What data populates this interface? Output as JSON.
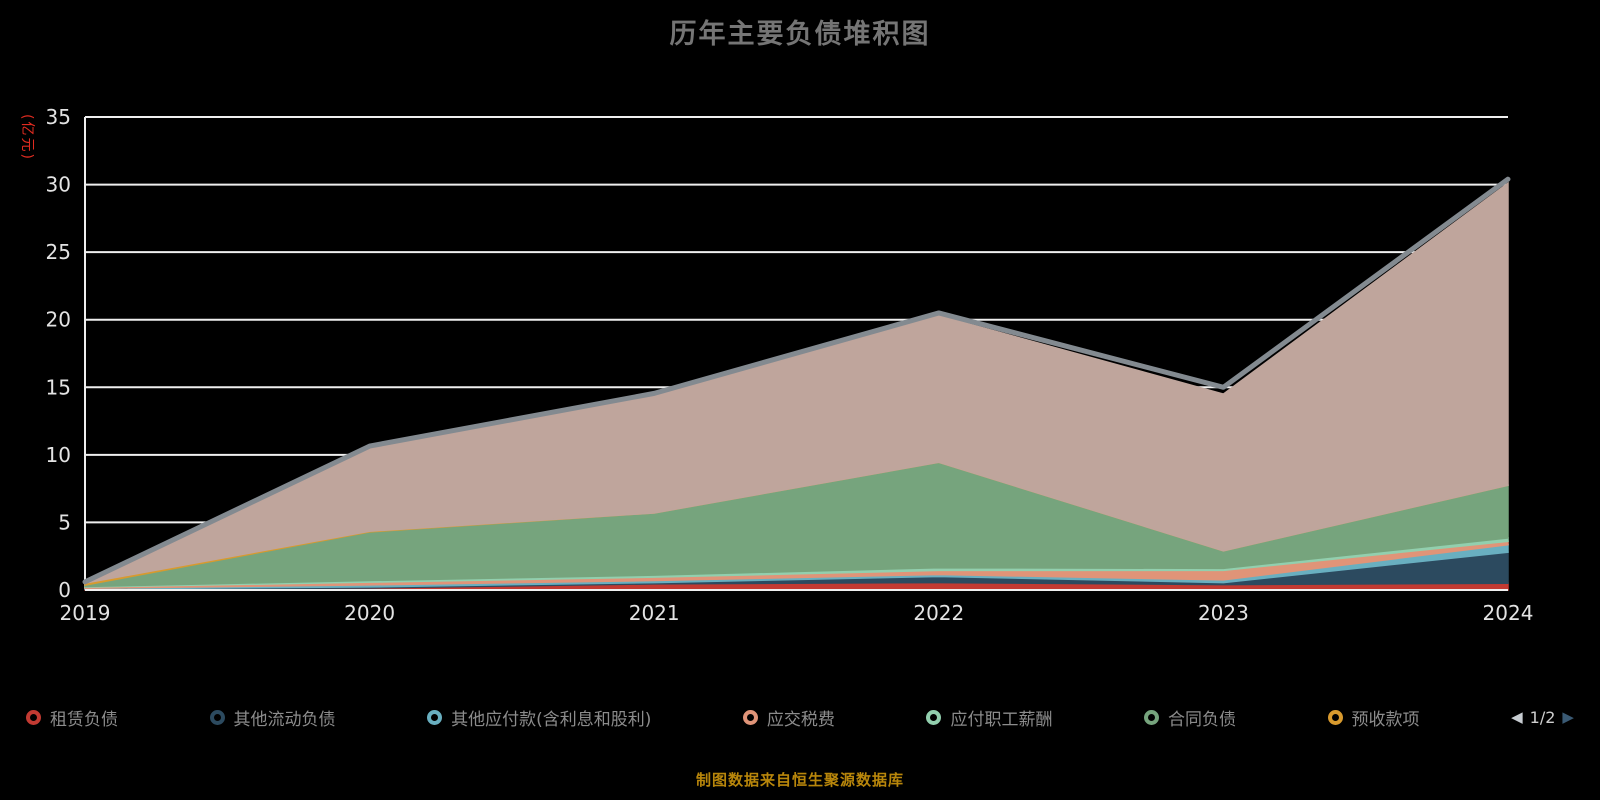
{
  "title": "历年主要负债堆积图",
  "y_axis_name": "(亿元)",
  "footer": "制图数据来自恒生聚源数据库",
  "pagination": {
    "current": "1/2",
    "prev_icon": "◀",
    "next_icon": "▶"
  },
  "chart_data": {
    "type": "area",
    "stacked": true,
    "title": "历年主要负债堆积图",
    "ylabel": "(亿元)",
    "x": [
      "2019",
      "2020",
      "2021",
      "2022",
      "2023",
      "2024"
    ],
    "ylim": [
      0,
      35
    ],
    "y_ticks": [
      0,
      5,
      10,
      15,
      20,
      25,
      30,
      35
    ],
    "grid": true,
    "legend_position": "bottom",
    "series": [
      {
        "name": "租赁负债",
        "color": "#c23a32",
        "in_legend": true,
        "values": [
          0.05,
          0.15,
          0.45,
          0.55,
          0.4,
          0.5
        ]
      },
      {
        "name": "其他流动负债",
        "color": "#2c4a5f",
        "in_legend": true,
        "values": [
          0.03,
          0.08,
          0.1,
          0.45,
          0.15,
          2.3
        ]
      },
      {
        "name": "其他应付款(含利息和股利)",
        "color": "#69afc0",
        "in_legend": true,
        "values": [
          0.05,
          0.15,
          0.15,
          0.15,
          0.2,
          0.55
        ]
      },
      {
        "name": "应交税费",
        "color": "#e09478",
        "in_legend": true,
        "values": [
          0.08,
          0.2,
          0.25,
          0.3,
          0.7,
          0.25
        ]
      },
      {
        "name": "应付职工薪酬",
        "color": "#92cfae",
        "in_legend": true,
        "values": [
          0.05,
          0.12,
          0.15,
          0.2,
          0.15,
          0.25
        ]
      },
      {
        "name": "合同负债",
        "color": "#76a47d",
        "in_legend": true,
        "values": [
          0.1,
          3.6,
          4.6,
          7.8,
          1.3,
          3.9
        ]
      },
      {
        "name": "预收款项",
        "color": "#d89a2e",
        "in_legend": true,
        "values": [
          0.15,
          0.05,
          0.0,
          0.0,
          0.0,
          0.0
        ]
      },
      {
        "name": "",
        "color": "#bfa59c",
        "in_legend": false,
        "values": [
          0.05,
          6.15,
          8.7,
          10.85,
          11.6,
          22.35
        ]
      }
    ],
    "total_line": {
      "color": "#838a90",
      "values": [
        0.6,
        10.65,
        14.55,
        20.5,
        15.0,
        30.4
      ]
    }
  }
}
